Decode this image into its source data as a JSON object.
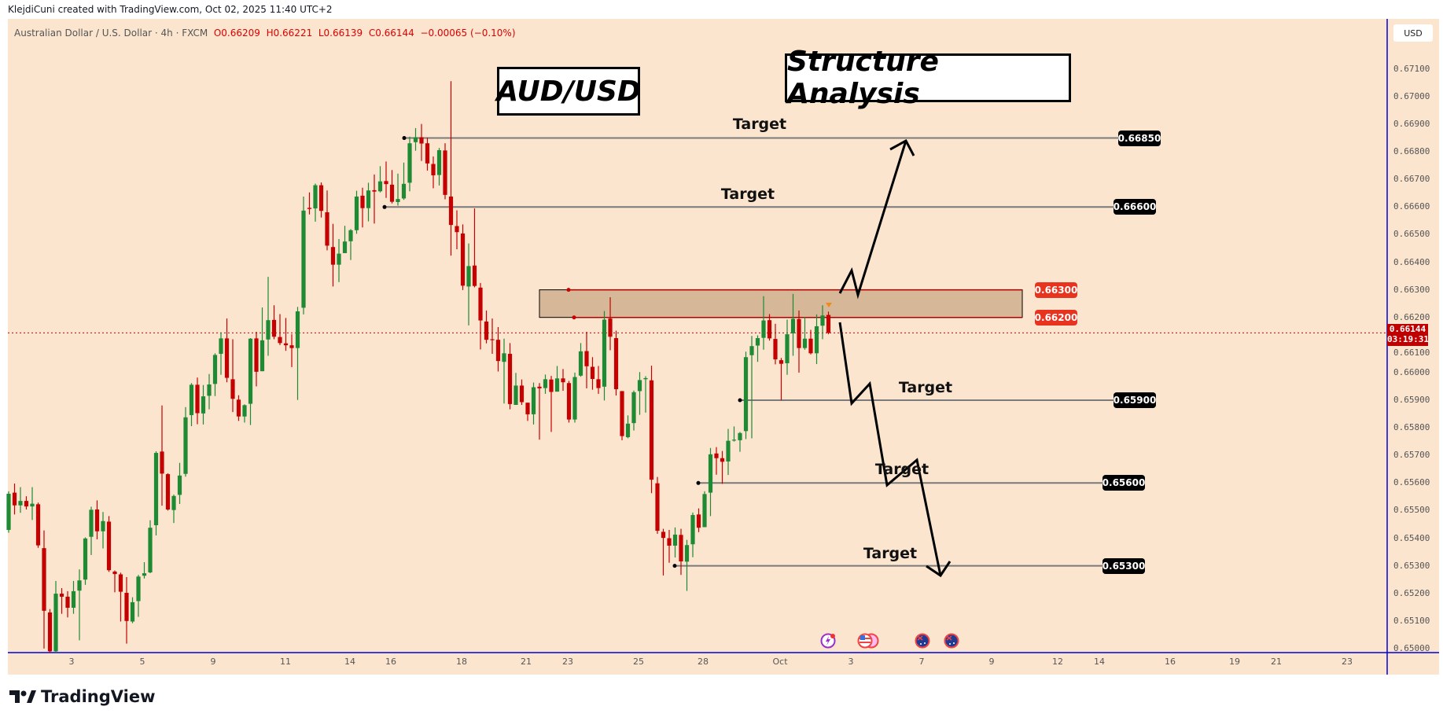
{
  "header": {
    "attribution": "KlejdiCuni created with TradingView.com, Oct 02, 2025 11:40 UTC+2"
  },
  "legend": {
    "symbol": "Australian Dollar / U.S. Dollar · 4h · FXCM",
    "open": "O0.66209",
    "high": "H0.66221",
    "low": "L0.66139",
    "close": "C0.66144",
    "change": "−0.00065 (−0.10%)"
  },
  "axis": {
    "currency": "USD",
    "current_price": "0.66144",
    "countdown": "03:19:31"
  },
  "annotations": {
    "title_left": "AUD/USD",
    "title_right": "Structure Analysis",
    "zone": {
      "top": "0.66300",
      "bottom": "0.66200"
    },
    "targets": [
      {
        "label": "Target",
        "price": "0.66850"
      },
      {
        "label": "Target",
        "price": "0.66600"
      },
      {
        "label": "Target",
        "price": "0.65900"
      },
      {
        "label": "Target",
        "price": "0.65600"
      },
      {
        "label": "Target",
        "price": "0.65300"
      }
    ]
  },
  "events": [
    "lightning-icon",
    "us-flag-icon",
    "australia-flag-icon",
    "australia-flag-icon"
  ],
  "footer": {
    "brand": "TradingView"
  },
  "colors": {
    "background": "#fbe5cf",
    "up": "#1e8a34",
    "down": "#c40000",
    "zone": "#d6b797",
    "zone_border": "#b00000",
    "axis_line": "#0000e0"
  },
  "chart_data": {
    "type": "candlestick",
    "title": "",
    "ylim": [
      0.65,
      0.6713
    ],
    "yticks": [
      "0.67100",
      "0.67000",
      "0.66900",
      "0.66800",
      "0.66700",
      "0.66600",
      "0.66500",
      "0.66400",
      "0.66300",
      "0.66200",
      "0.66100",
      "0.66000",
      "0.65900",
      "0.65800",
      "0.65700",
      "0.65600",
      "0.65500",
      "0.65400",
      "0.65300",
      "0.65200",
      "0.65100",
      "0.65000"
    ],
    "xticks": [
      "3",
      "5",
      "9",
      "11",
      "14",
      "16",
      "18",
      "21",
      "23",
      "25",
      "28",
      "Oct",
      "3",
      "7",
      "9",
      "12",
      "14",
      "16",
      "19",
      "21",
      "23"
    ],
    "grid": false,
    "candles_ohlc": [
      [
        0.6543,
        0.6557,
        0.6542,
        0.65561
      ],
      [
        0.65565,
        0.65598,
        0.65486,
        0.65519
      ],
      [
        0.65519,
        0.65585,
        0.65492,
        0.65535
      ],
      [
        0.65535,
        0.65552,
        0.65504,
        0.65515
      ],
      [
        0.65515,
        0.65585,
        0.65466,
        0.65525
      ],
      [
        0.65523,
        0.65529,
        0.65365,
        0.65374
      ],
      [
        0.65364,
        0.65428,
        0.65,
        0.65137
      ],
      [
        0.65131,
        0.65143,
        0.6495,
        0.6499
      ],
      [
        0.6499,
        0.65245,
        0.6496,
        0.65199
      ],
      [
        0.65199,
        0.65219,
        0.65126,
        0.65188
      ],
      [
        0.65188,
        0.65208,
        0.65113,
        0.65148
      ],
      [
        0.65148,
        0.65245,
        0.65126,
        0.65208
      ],
      [
        0.6521,
        0.65287,
        0.6503,
        0.65247
      ],
      [
        0.6525,
        0.65403,
        0.65231,
        0.65399
      ],
      [
        0.65405,
        0.65514,
        0.65339,
        0.65503
      ],
      [
        0.65504,
        0.65537,
        0.65396,
        0.65425
      ],
      [
        0.65425,
        0.65495,
        0.65363,
        0.65462
      ],
      [
        0.6546,
        0.6548,
        0.65278,
        0.65284
      ],
      [
        0.65279,
        0.65283,
        0.65204,
        0.6527
      ],
      [
        0.65269,
        0.65275,
        0.65098,
        0.65206
      ],
      [
        0.65202,
        0.65259,
        0.65018,
        0.651
      ],
      [
        0.65098,
        0.65186,
        0.65092,
        0.65168
      ],
      [
        0.65172,
        0.65267,
        0.65115,
        0.65261
      ],
      [
        0.65264,
        0.65313,
        0.65254,
        0.65273
      ],
      [
        0.65276,
        0.65465,
        0.65273,
        0.65438
      ],
      [
        0.65447,
        0.65715,
        0.6541,
        0.65709
      ],
      [
        0.65714,
        0.65881,
        0.65518,
        0.65634
      ],
      [
        0.65632,
        0.65635,
        0.655,
        0.65504
      ],
      [
        0.65502,
        0.65558,
        0.65455,
        0.65553
      ],
      [
        0.65557,
        0.65673,
        0.65524,
        0.65627
      ],
      [
        0.65633,
        0.65875,
        0.65623,
        0.65838
      ],
      [
        0.65846,
        0.65962,
        0.65806,
        0.65956
      ],
      [
        0.65956,
        0.65982,
        0.65813,
        0.65853
      ],
      [
        0.65852,
        0.65955,
        0.65812,
        0.65914
      ],
      [
        0.65916,
        0.65995,
        0.65867,
        0.65957
      ],
      [
        0.65959,
        0.6607,
        0.65915,
        0.66064
      ],
      [
        0.66068,
        0.66146,
        0.65992,
        0.66124
      ],
      [
        0.66124,
        0.66196,
        0.65965,
        0.65981
      ],
      [
        0.65976,
        0.66121,
        0.65857,
        0.65905
      ],
      [
        0.65902,
        0.65918,
        0.65825,
        0.65841
      ],
      [
        0.65841,
        0.65885,
        0.65819,
        0.65882
      ],
      [
        0.65887,
        0.66125,
        0.6581,
        0.66123
      ],
      [
        0.66124,
        0.66148,
        0.6595,
        0.66003
      ],
      [
        0.66005,
        0.66236,
        0.66005,
        0.66117
      ],
      [
        0.6612,
        0.66347,
        0.66061,
        0.6619
      ],
      [
        0.66191,
        0.66244,
        0.66121,
        0.6613
      ],
      [
        0.66129,
        0.66212,
        0.661,
        0.66107
      ],
      [
        0.66106,
        0.66198,
        0.66079,
        0.66099
      ],
      [
        0.66099,
        0.66139,
        0.6602,
        0.66089
      ],
      [
        0.66089,
        0.66238,
        0.65901,
        0.66222
      ],
      [
        0.66235,
        0.66638,
        0.66211,
        0.66587
      ],
      [
        0.66597,
        0.66653,
        0.66573,
        0.66593
      ],
      [
        0.66595,
        0.66685,
        0.66547,
        0.66679
      ],
      [
        0.66679,
        0.66689,
        0.66562,
        0.66586
      ],
      [
        0.66581,
        0.6666,
        0.66443,
        0.6646
      ],
      [
        0.66455,
        0.66539,
        0.66312,
        0.66391
      ],
      [
        0.66391,
        0.66484,
        0.66328,
        0.66431
      ],
      [
        0.66433,
        0.66532,
        0.66433,
        0.66475
      ],
      [
        0.66476,
        0.6652,
        0.66408,
        0.66516
      ],
      [
        0.66516,
        0.66659,
        0.66503,
        0.66638
      ],
      [
        0.66641,
        0.6667,
        0.66526,
        0.66596
      ],
      [
        0.66596,
        0.66688,
        0.66548,
        0.6666
      ],
      [
        0.66661,
        0.66718,
        0.6654,
        0.66656
      ],
      [
        0.66657,
        0.66748,
        0.66653,
        0.66693
      ],
      [
        0.66694,
        0.66765,
        0.66633,
        0.66683
      ],
      [
        0.66681,
        0.66734,
        0.66613,
        0.66619
      ],
      [
        0.66618,
        0.66721,
        0.66605,
        0.66629
      ],
      [
        0.66631,
        0.66761,
        0.66626,
        0.66684
      ],
      [
        0.66688,
        0.66855,
        0.66657,
        0.66831
      ],
      [
        0.66835,
        0.66886,
        0.66804,
        0.66853
      ],
      [
        0.66853,
        0.66901,
        0.66767,
        0.6683
      ],
      [
        0.66831,
        0.66851,
        0.66732,
        0.66758
      ],
      [
        0.66756,
        0.66783,
        0.66668,
        0.66715
      ],
      [
        0.66716,
        0.66814,
        0.66678,
        0.66806
      ],
      [
        0.66805,
        0.66831,
        0.66628,
        0.66644
      ],
      [
        0.66638,
        0.67056,
        0.66424,
        0.66535
      ],
      [
        0.66531,
        0.66588,
        0.66447,
        0.66509
      ],
      [
        0.66504,
        0.66537,
        0.66299,
        0.66315
      ],
      [
        0.66312,
        0.66468,
        0.66171,
        0.66386
      ],
      [
        0.66388,
        0.66595,
        0.66309,
        0.66314
      ],
      [
        0.66308,
        0.66325,
        0.66084,
        0.66189
      ],
      [
        0.66185,
        0.66225,
        0.66106,
        0.66119
      ],
      [
        0.66121,
        0.66196,
        0.66068,
        0.66118
      ],
      [
        0.66119,
        0.66165,
        0.66004,
        0.66042
      ],
      [
        0.66039,
        0.66123,
        0.65888,
        0.6607
      ],
      [
        0.66068,
        0.66107,
        0.65867,
        0.65886
      ],
      [
        0.65883,
        0.65999,
        0.65883,
        0.65953
      ],
      [
        0.65953,
        0.65975,
        0.65883,
        0.65893
      ],
      [
        0.65891,
        0.65891,
        0.65825,
        0.65849
      ],
      [
        0.65849,
        0.65964,
        0.65812,
        0.65947
      ],
      [
        0.65949,
        0.65962,
        0.65757,
        0.65943
      ],
      [
        0.65944,
        0.65993,
        0.65923,
        0.65976
      ],
      [
        0.65975,
        0.65988,
        0.65785,
        0.6593
      ],
      [
        0.65931,
        0.66024,
        0.65931,
        0.65979
      ],
      [
        0.65979,
        0.66013,
        0.65934,
        0.65965
      ],
      [
        0.65962,
        0.6597,
        0.65819,
        0.6583
      ],
      [
        0.6583,
        0.66,
        0.65819,
        0.65984
      ],
      [
        0.65989,
        0.66107,
        0.65985,
        0.66077
      ],
      [
        0.66078,
        0.66148,
        0.65943,
        0.66023
      ],
      [
        0.66021,
        0.66056,
        0.65938,
        0.65977
      ],
      [
        0.65976,
        0.66024,
        0.65923,
        0.65944
      ],
      [
        0.65949,
        0.66223,
        0.65899,
        0.66192
      ],
      [
        0.66196,
        0.66273,
        0.66081,
        0.6613
      ],
      [
        0.66125,
        0.66152,
        0.65917,
        0.6594
      ],
      [
        0.65933,
        0.65933,
        0.65755,
        0.6577
      ],
      [
        0.65766,
        0.65845,
        0.65762,
        0.65815
      ],
      [
        0.65817,
        0.65935,
        0.6579,
        0.65929
      ],
      [
        0.65933,
        0.66002,
        0.65847,
        0.65973
      ],
      [
        0.65976,
        0.65987,
        0.65855,
        0.6598
      ],
      [
        0.65972,
        0.66025,
        0.65563,
        0.65612
      ],
      [
        0.65599,
        0.65622,
        0.65416,
        0.65427
      ],
      [
        0.65423,
        0.65434,
        0.65265,
        0.65401
      ],
      [
        0.654,
        0.6543,
        0.65311,
        0.65373
      ],
      [
        0.65373,
        0.65439,
        0.6533,
        0.65413
      ],
      [
        0.65412,
        0.65434,
        0.65267,
        0.65316
      ],
      [
        0.65315,
        0.65394,
        0.65209,
        0.65375
      ],
      [
        0.65378,
        0.65493,
        0.65331,
        0.65484
      ],
      [
        0.65486,
        0.65508,
        0.65422,
        0.65438
      ],
      [
        0.6544,
        0.6557,
        0.6544,
        0.6556
      ],
      [
        0.65565,
        0.65727,
        0.6548,
        0.65704
      ],
      [
        0.65707,
        0.6573,
        0.6563,
        0.6569
      ],
      [
        0.6569,
        0.65716,
        0.65597,
        0.65677
      ],
      [
        0.65678,
        0.65796,
        0.65629,
        0.65753
      ],
      [
        0.65755,
        0.65805,
        0.6575,
        0.65757
      ],
      [
        0.65755,
        0.65785,
        0.65713,
        0.65781
      ],
      [
        0.65788,
        0.66076,
        0.65759,
        0.66056
      ],
      [
        0.66063,
        0.66133,
        0.65762,
        0.66096
      ],
      [
        0.66098,
        0.66135,
        0.66039,
        0.66125
      ],
      [
        0.66126,
        0.66277,
        0.66083,
        0.66189
      ],
      [
        0.6619,
        0.66212,
        0.66116,
        0.66124
      ],
      [
        0.66122,
        0.66177,
        0.6603,
        0.66048
      ],
      [
        0.66045,
        0.66053,
        0.659,
        0.66032
      ],
      [
        0.66034,
        0.66192,
        0.65992,
        0.66139
      ],
      [
        0.66142,
        0.66285,
        0.66061,
        0.66195
      ],
      [
        0.66194,
        0.66225,
        0.66,
        0.66089
      ],
      [
        0.66089,
        0.66202,
        0.66083,
        0.66123
      ],
      [
        0.66123,
        0.66155,
        0.66066,
        0.6607
      ],
      [
        0.6607,
        0.66211,
        0.66031,
        0.66168
      ],
      [
        0.6617,
        0.66244,
        0.66121,
        0.66207
      ],
      [
        0.66209,
        0.66221,
        0.66139,
        0.66144
      ]
    ]
  }
}
